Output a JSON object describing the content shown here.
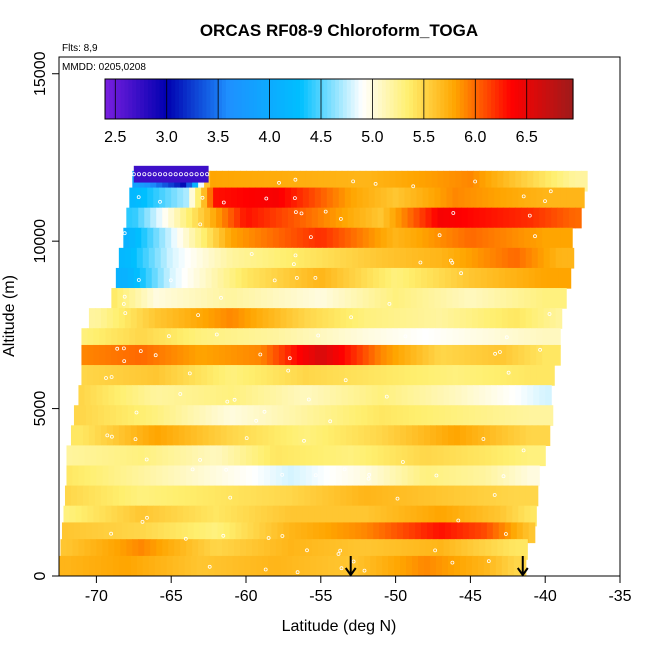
{
  "chart_data": {
    "type": "heatmap",
    "title": "ORCAS RF08-9 Chloroform_TOGA",
    "xlabel": "Latitude (deg N)",
    "ylabel": "Altitude (m)",
    "flights_note": "Flts: 8,9",
    "date_note": "MMDD: 0205,0208",
    "xlim": [
      -72.5,
      -35
    ],
    "ylim": [
      0,
      15500
    ],
    "x_ticks": [
      -70,
      -65,
      -60,
      -55,
      -50,
      -45,
      -40,
      -35
    ],
    "x_tick_labels": [
      "-70",
      "-65",
      "-60",
      "-55",
      "-50",
      "-45",
      "-40",
      "-35"
    ],
    "y_ticks": [
      0,
      5000,
      10000,
      15000
    ],
    "y_tick_labels": [
      "0",
      "5000",
      "10000",
      "15000"
    ],
    "colorbar": {
      "range": [
        2.4,
        6.95
      ],
      "ticks": [
        2.5,
        3.0,
        3.5,
        4.0,
        4.5,
        5.0,
        5.5,
        6.0,
        6.5
      ],
      "tick_labels": [
        "2.5",
        "3.0",
        "3.5",
        "4.0",
        "4.5",
        "5.0",
        "5.5",
        "6.0",
        "6.5"
      ],
      "colors": [
        "#7a1fe0",
        "#0000b0",
        "#1e90ff",
        "#00bfff",
        "#ffffff",
        "#ffef6e",
        "#ffa500",
        "#ff0000",
        "#9e1b1b"
      ]
    },
    "arrows_at_latitude": [
      -53,
      -41.5
    ],
    "bands": [
      {
        "alt": 11800,
        "lat_start": -67.6,
        "lat_end": -37.3,
        "vals": [
          [
            -67.5,
            3.9
          ],
          [
            -64,
            3.0
          ],
          [
            -62.5,
            5.8
          ],
          [
            -52,
            5.7
          ],
          [
            -45,
            5.9
          ],
          [
            -38,
            5.2
          ]
        ]
      },
      {
        "alt": 11300,
        "lat_start": -67.8,
        "lat_end": -37.8,
        "vals": [
          [
            -67.5,
            4.2
          ],
          [
            -64,
            4.7
          ],
          [
            -62,
            6.3
          ],
          [
            -58,
            6.4
          ],
          [
            -53,
            5.8
          ],
          [
            -50,
            5.6
          ],
          [
            -46,
            5.9
          ],
          [
            -40,
            5.7
          ]
        ]
      },
      {
        "alt": 10700,
        "lat_start": -68.0,
        "lat_end": -38.0,
        "vals": [
          [
            -67.5,
            4.4
          ],
          [
            -64,
            5.3
          ],
          [
            -60,
            6.3
          ],
          [
            -56,
            6.0
          ],
          [
            -51,
            5.6
          ],
          [
            -47,
            6.4
          ],
          [
            -41,
            6.2
          ],
          [
            -38,
            6.0
          ]
        ]
      },
      {
        "alt": 10100,
        "lat_start": -68.2,
        "lat_end": -38.3,
        "vals": [
          [
            -68,
            4.1
          ],
          [
            -65,
            4.8
          ],
          [
            -61,
            5.8
          ],
          [
            -55,
            6.2
          ],
          [
            -50,
            5.7
          ],
          [
            -45,
            6.0
          ],
          [
            -40,
            5.8
          ]
        ]
      },
      {
        "alt": 9500,
        "lat_start": -68.5,
        "lat_end": -38.5,
        "vals": [
          [
            -68,
            4.2
          ],
          [
            -65,
            4.8
          ],
          [
            -61,
            5.2
          ],
          [
            -56,
            5.4
          ],
          [
            -51,
            5.6
          ],
          [
            -47,
            5.7
          ],
          [
            -42,
            6.0
          ],
          [
            -39,
            5.7
          ]
        ]
      },
      {
        "alt": 8900,
        "lat_start": -68.7,
        "lat_end": -38.6,
        "vals": [
          [
            -68,
            4.1
          ],
          [
            -65,
            4.8
          ],
          [
            -60,
            5.4
          ],
          [
            -55,
            5.7
          ],
          [
            -50,
            5.3
          ],
          [
            -45,
            5.6
          ],
          [
            -40,
            5.8
          ]
        ]
      },
      {
        "alt": 8300,
        "lat_start": -69.0,
        "lat_end": -38.8,
        "vals": [
          [
            -69,
            5.4
          ],
          [
            -66,
            5.0
          ],
          [
            -61,
            5.2
          ],
          [
            -55,
            5.0
          ],
          [
            -50,
            5.3
          ],
          [
            -45,
            5.1
          ],
          [
            -40,
            5.3
          ]
        ]
      },
      {
        "alt": 7700,
        "lat_start": -70.5,
        "lat_end": -39.0,
        "vals": [
          [
            -70,
            5.2
          ],
          [
            -66,
            5.6
          ],
          [
            -61,
            5.9
          ],
          [
            -56,
            5.5
          ],
          [
            -52,
            5.3
          ],
          [
            -47,
            5.2
          ],
          [
            -42,
            5.4
          ],
          [
            -39,
            5.2
          ]
        ]
      },
      {
        "alt": 7100,
        "lat_start": -71.0,
        "lat_end": -39.2,
        "vals": [
          [
            -71,
            5.3
          ],
          [
            -67,
            5.5
          ],
          [
            -63,
            5.3
          ],
          [
            -58,
            5.2
          ],
          [
            -52,
            5.0
          ],
          [
            -48,
            4.9
          ],
          [
            -44,
            5.0
          ],
          [
            -40,
            5.1
          ]
        ]
      },
      {
        "alt": 6600,
        "lat_start": -71.0,
        "lat_end": -39.3,
        "vals": [
          [
            -71,
            5.9
          ],
          [
            -67,
            6.0
          ],
          [
            -63,
            5.8
          ],
          [
            -59,
            5.9
          ],
          [
            -55,
            6.6
          ],
          [
            -51,
            5.9
          ],
          [
            -47,
            5.5
          ],
          [
            -43,
            5.6
          ],
          [
            -40,
            5.4
          ]
        ]
      },
      {
        "alt": 6000,
        "lat_start": -71.0,
        "lat_end": -39.5,
        "vals": [
          [
            -71,
            5.5
          ],
          [
            -66,
            5.6
          ],
          [
            -61,
            5.3
          ],
          [
            -56,
            5.5
          ],
          [
            -51,
            5.4
          ],
          [
            -46,
            5.3
          ],
          [
            -41,
            5.4
          ]
        ]
      },
      {
        "alt": 5400,
        "lat_start": -71.2,
        "lat_end": -39.6,
        "vals": [
          [
            -71,
            5.5
          ],
          [
            -66,
            5.2
          ],
          [
            -61,
            5.3
          ],
          [
            -56,
            5.1
          ],
          [
            -51,
            5.3
          ],
          [
            -46,
            5.1
          ],
          [
            -42,
            4.9
          ],
          [
            -40,
            4.8
          ]
        ]
      },
      {
        "alt": 4800,
        "lat_start": -71.5,
        "lat_end": -39.8,
        "vals": [
          [
            -71,
            5.5
          ],
          [
            -66,
            5.3
          ],
          [
            -61,
            5.0
          ],
          [
            -56,
            5.2
          ],
          [
            -51,
            5.4
          ],
          [
            -46,
            5.3
          ],
          [
            -41,
            5.2
          ]
        ]
      },
      {
        "alt": 4200,
        "lat_start": -71.7,
        "lat_end": -40.0,
        "vals": [
          [
            -71,
            5.4
          ],
          [
            -66,
            5.8
          ],
          [
            -61,
            5.5
          ],
          [
            -56,
            5.3
          ],
          [
            -51,
            5.5
          ],
          [
            -46,
            5.8
          ],
          [
            -41,
            5.5
          ]
        ]
      },
      {
        "alt": 3600,
        "lat_start": -72.0,
        "lat_end": -40.2,
        "vals": [
          [
            -72,
            5.2
          ],
          [
            -67,
            5.3
          ],
          [
            -62,
            5.1
          ],
          [
            -58,
            5.4
          ],
          [
            -53,
            5.3
          ],
          [
            -48,
            5.5
          ],
          [
            -44,
            5.4
          ],
          [
            -41,
            5.3
          ]
        ]
      },
      {
        "alt": 3000,
        "lat_start": -72.0,
        "lat_end": -40.4,
        "vals": [
          [
            -72,
            5.4
          ],
          [
            -67,
            5.2
          ],
          [
            -62,
            5.0
          ],
          [
            -57,
            4.8
          ],
          [
            -52,
            5.0
          ],
          [
            -48,
            5.3
          ],
          [
            -44,
            5.2
          ],
          [
            -41,
            5.0
          ]
        ]
      },
      {
        "alt": 2400,
        "lat_start": -72.1,
        "lat_end": -40.7,
        "vals": [
          [
            -72,
            5.5
          ],
          [
            -67,
            5.3
          ],
          [
            -62,
            5.4
          ],
          [
            -57,
            5.5
          ],
          [
            -52,
            5.7
          ],
          [
            -47,
            5.6
          ],
          [
            -42,
            5.5
          ]
        ]
      },
      {
        "alt": 1800,
        "lat_start": -72.2,
        "lat_end": -40.9,
        "vals": [
          [
            -72,
            5.3
          ],
          [
            -67,
            5.6
          ],
          [
            -62,
            5.4
          ],
          [
            -57,
            5.6
          ],
          [
            -52,
            5.6
          ],
          [
            -47,
            5.8
          ],
          [
            -43,
            5.6
          ],
          [
            -41,
            5.4
          ]
        ]
      },
      {
        "alt": 1300,
        "lat_start": -72.3,
        "lat_end": -41.0,
        "vals": [
          [
            -72,
            5.6
          ],
          [
            -67,
            5.5
          ],
          [
            -62,
            5.3
          ],
          [
            -57,
            5.7
          ],
          [
            -52,
            5.9
          ],
          [
            -47,
            6.3
          ],
          [
            -44,
            6.1
          ],
          [
            -41,
            5.6
          ]
        ]
      },
      {
        "alt": 800,
        "lat_start": -72.4,
        "lat_end": -41.2,
        "vals": [
          [
            -72,
            5.6
          ],
          [
            -67,
            5.9
          ],
          [
            -62,
            5.5
          ],
          [
            -57,
            5.7
          ],
          [
            -52,
            5.6
          ],
          [
            -47,
            5.7
          ],
          [
            -42,
            5.4
          ]
        ]
      },
      {
        "alt": 300,
        "lat_start": -72.5,
        "lat_end": -41.5,
        "vals": [
          [
            -72,
            5.7
          ],
          [
            -68,
            5.8
          ],
          [
            -63,
            5.6
          ],
          [
            -58,
            5.7
          ],
          [
            -53,
            5.6
          ],
          [
            -48,
            5.9
          ],
          [
            -44,
            5.7
          ],
          [
            -42,
            5.5
          ]
        ]
      }
    ],
    "top_strip": {
      "alt": 12000,
      "lat_start": -67.5,
      "lat_end": -62.5,
      "val": 2.7
    }
  }
}
